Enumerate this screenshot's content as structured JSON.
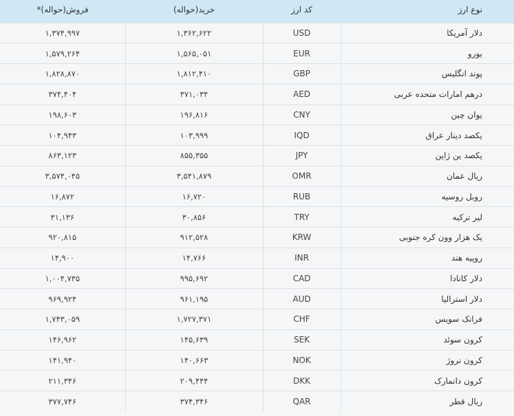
{
  "headers": {
    "name": "نوع ارز",
    "code": "کد ارز",
    "buy": "خرید(حواله)",
    "sell": "فروش(حواله)*"
  },
  "rows": [
    {
      "name": "دلار آمریکا",
      "code": "USD",
      "buy": "۱,۳۶۲,۶۲۲",
      "sell": "۱,۳۷۴,۹۹۷"
    },
    {
      "name": "یورو",
      "code": "EUR",
      "buy": "۱,۵۶۵,۰۵۱",
      "sell": "۱,۵۷۹,۲۶۴"
    },
    {
      "name": "پوند انگلیس",
      "code": "GBP",
      "buy": "۱,۸۱۲,۴۱۰",
      "sell": "۱,۸۲۸,۸۷۰"
    },
    {
      "name": "درهم امارات متحده عربی",
      "code": "AED",
      "buy": "۳۷۱,۰۳۴",
      "sell": "۳۷۴,۴۰۴"
    },
    {
      "name": "یوان چین",
      "code": "CNY",
      "buy": "۱۹۶,۸۱۶",
      "sell": "۱۹۸,۶۰۳"
    },
    {
      "name": "یکصد دینار عراق",
      "code": "IQD",
      "buy": "۱۰۳,۹۹۹",
      "sell": "۱۰۴,۹۴۳"
    },
    {
      "name": "یکصد ین ژاپن",
      "code": "JPY",
      "buy": "۸۵۵,۳۵۵",
      "sell": "۸۶۳,۱۲۳"
    },
    {
      "name": "ریال عمان",
      "code": "OMR",
      "buy": "۳,۵۴۱,۸۷۹",
      "sell": "۳,۵۷۴,۰۴۵"
    },
    {
      "name": "روبل روسیه",
      "code": "RUB",
      "buy": "۱۶,۷۲۰",
      "sell": "۱۶,۸۷۲"
    },
    {
      "name": "لیر ترکیه",
      "code": "TRY",
      "buy": "۳۰,۸۵۶",
      "sell": "۳۱,۱۳۶"
    },
    {
      "name": "یک هزار وون کره جنوبی",
      "code": "KRW",
      "buy": "۹۱۲,۵۲۸",
      "sell": "۹۲۰,۸۱۵"
    },
    {
      "name": "روپیه هند",
      "code": "INR",
      "buy": "۱۴,۷۶۶",
      "sell": "۱۴,۹۰۰"
    },
    {
      "name": "دلار کانادا",
      "code": "CAD",
      "buy": "۹۹۵,۶۹۲",
      "sell": "۱,۰۰۴,۷۳۵"
    },
    {
      "name": "دلار استرالیا",
      "code": "AUD",
      "buy": "۹۶۱,۱۹۵",
      "sell": "۹۶۹,۹۲۴"
    },
    {
      "name": "فرانک سویس",
      "code": "CHF",
      "buy": "۱,۷۲۷,۳۷۱",
      "sell": "۱,۷۴۳,۰۵۹"
    },
    {
      "name": "کرون سوئد",
      "code": "SEK",
      "buy": "۱۴۵,۶۳۹",
      "sell": "۱۴۶,۹۶۲"
    },
    {
      "name": "کرون نروژ",
      "code": "NOK",
      "buy": "۱۴۰,۶۶۳",
      "sell": "۱۴۱,۹۴۰"
    },
    {
      "name": "کرون دانمارک",
      "code": "DKK",
      "buy": "۲۰۹,۴۴۴",
      "sell": "۲۱۱,۳۴۶"
    },
    {
      "name": "ریال قطر",
      "code": "QAR",
      "buy": "۳۷۴,۳۴۶",
      "sell": "۳۷۷,۷۴۶"
    }
  ],
  "colors": {
    "header_bg": "#cfe8f5",
    "body_bg": "#f5f6f7",
    "border": "#dcdfe2"
  }
}
